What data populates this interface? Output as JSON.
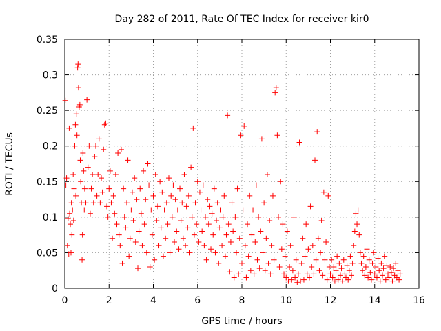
{
  "chart_data": {
    "type": "scatter",
    "title": "Day 282 of 2011, Rate Of TEC Index for receiver kir0",
    "xlabel": "GPS time / hours",
    "ylabel": "ROTI / TECUs",
    "xlim": [
      0,
      16
    ],
    "ylim": [
      0,
      0.35
    ],
    "xticks": [
      "0",
      "2",
      "4",
      "6",
      "8",
      "10",
      "12",
      "14",
      "16"
    ],
    "yticks": [
      "0",
      "0.05",
      "0.1",
      "0.15",
      "0.2",
      "0.25",
      "0.3",
      "0.35"
    ],
    "grid": true,
    "marker": "plus",
    "color": "#ff0000",
    "series": [
      {
        "points": [
          [
            0.02,
            0.264
          ],
          [
            0.05,
            0.145
          ],
          [
            0.08,
            0.155
          ],
          [
            0.12,
            0.06
          ],
          [
            0.15,
            0.098
          ],
          [
            0.18,
            0.048
          ],
          [
            0.2,
            0.225
          ],
          [
            0.22,
            0.105
          ],
          [
            0.25,
            0.09
          ],
          [
            0.28,
            0.05
          ],
          [
            0.3,
            0.12
          ],
          [
            0.32,
            0.075
          ],
          [
            0.35,
            0.11
          ],
          [
            0.38,
            0.16
          ],
          [
            0.4,
            0.095
          ],
          [
            0.42,
            0.14
          ],
          [
            0.45,
            0.2
          ],
          [
            0.48,
            0.23
          ],
          [
            0.5,
            0.13
          ],
          [
            0.52,
            0.245
          ],
          [
            0.55,
            0.215
          ],
          [
            0.58,
            0.31
          ],
          [
            0.6,
            0.315
          ],
          [
            0.62,
            0.282
          ],
          [
            0.65,
            0.255
          ],
          [
            0.68,
            0.258
          ],
          [
            0.7,
            0.18
          ],
          [
            0.72,
            0.15
          ],
          [
            0.75,
            0.12
          ],
          [
            0.78,
            0.04
          ],
          [
            0.8,
            0.075
          ],
          [
            0.82,
            0.19
          ],
          [
            0.85,
            0.165
          ],
          [
            0.88,
            0.11
          ],
          [
            0.9,
            0.14
          ],
          [
            0.95,
            0.12
          ],
          [
            1.0,
            0.265
          ],
          [
            1.05,
            0.17
          ],
          [
            1.1,
            0.2
          ],
          [
            1.15,
            0.105
          ],
          [
            1.2,
            0.14
          ],
          [
            1.25,
            0.16
          ],
          [
            1.3,
            0.12
          ],
          [
            1.35,
            0.185
          ],
          [
            1.4,
            0.2
          ],
          [
            1.45,
            0.13
          ],
          [
            1.5,
            0.16
          ],
          [
            1.55,
            0.21
          ],
          [
            1.6,
            0.12
          ],
          [
            1.65,
            0.155
          ],
          [
            1.7,
            0.135
          ],
          [
            1.75,
            0.195
          ],
          [
            1.8,
            0.23
          ],
          [
            1.85,
            0.232
          ],
          [
            1.9,
            0.115
          ],
          [
            1.95,
            0.1
          ],
          [
            2.0,
            0.14
          ],
          [
            2.05,
            0.165
          ],
          [
            2.1,
            0.12
          ],
          [
            2.15,
            0.07
          ],
          [
            2.2,
            0.13
          ],
          [
            2.25,
            0.105
          ],
          [
            2.3,
            0.16
          ],
          [
            2.35,
            0.09
          ],
          [
            2.4,
            0.19
          ],
          [
            2.45,
            0.075
          ],
          [
            2.5,
            0.06
          ],
          [
            2.55,
            0.195
          ],
          [
            2.6,
            0.035
          ],
          [
            2.65,
            0.14
          ],
          [
            2.7,
            0.1
          ],
          [
            2.75,
            0.085
          ],
          [
            2.8,
            0.12
          ],
          [
            2.85,
            0.18
          ],
          [
            2.9,
            0.045
          ],
          [
            2.95,
            0.07
          ],
          [
            3.0,
            0.11
          ],
          [
            3.05,
            0.135
          ],
          [
            3.1,
            0.095
          ],
          [
            3.15,
            0.155
          ],
          [
            3.2,
            0.065
          ],
          [
            3.25,
            0.125
          ],
          [
            3.3,
            0.028
          ],
          [
            3.35,
            0.08
          ],
          [
            3.4,
            0.14
          ],
          [
            3.45,
            0.105
          ],
          [
            3.5,
            0.06
          ],
          [
            3.55,
            0.165
          ],
          [
            3.6,
            0.09
          ],
          [
            3.65,
            0.125
          ],
          [
            3.7,
            0.05
          ],
          [
            3.75,
            0.175
          ],
          [
            3.8,
            0.145
          ],
          [
            3.85,
            0.03
          ],
          [
            3.9,
            0.11
          ],
          [
            3.95,
            0.075
          ],
          [
            4.0,
            0.13
          ],
          [
            4.05,
            0.04
          ],
          [
            4.1,
            0.16
          ],
          [
            4.15,
            0.095
          ],
          [
            4.2,
            0.115
          ],
          [
            4.25,
            0.06
          ],
          [
            4.3,
            0.15
          ],
          [
            4.35,
            0.085
          ],
          [
            4.4,
            0.135
          ],
          [
            4.45,
            0.045
          ],
          [
            4.5,
            0.11
          ],
          [
            4.55,
            0.07
          ],
          [
            4.6,
            0.12
          ],
          [
            4.65,
            0.09
          ],
          [
            4.7,
            0.155
          ],
          [
            4.75,
            0.05
          ],
          [
            4.8,
            0.13
          ],
          [
            4.85,
            0.1
          ],
          [
            4.9,
            0.145
          ],
          [
            4.95,
            0.065
          ],
          [
            5.0,
            0.125
          ],
          [
            5.05,
            0.08
          ],
          [
            5.1,
            0.11
          ],
          [
            5.15,
            0.055
          ],
          [
            5.2,
            0.14
          ],
          [
            5.25,
            0.095
          ],
          [
            5.3,
            0.12
          ],
          [
            5.35,
            0.07
          ],
          [
            5.4,
            0.16
          ],
          [
            5.45,
            0.06
          ],
          [
            5.5,
            0.115
          ],
          [
            5.55,
            0.085
          ],
          [
            5.6,
            0.13
          ],
          [
            5.65,
            0.05
          ],
          [
            5.7,
            0.17
          ],
          [
            5.75,
            0.1
          ],
          [
            5.8,
            0.225
          ],
          [
            5.85,
            0.075
          ],
          [
            5.9,
            0.12
          ],
          [
            5.95,
            0.09
          ],
          [
            6.0,
            0.15
          ],
          [
            6.05,
            0.065
          ],
          [
            6.1,
            0.135
          ],
          [
            6.15,
            0.11
          ],
          [
            6.2,
            0.08
          ],
          [
            6.25,
            0.145
          ],
          [
            6.3,
            0.06
          ],
          [
            6.35,
            0.1
          ],
          [
            6.4,
            0.04
          ],
          [
            6.45,
            0.125
          ],
          [
            6.5,
            0.09
          ],
          [
            6.55,
            0.115
          ],
          [
            6.6,
            0.055
          ],
          [
            6.65,
            0.105
          ],
          [
            6.7,
            0.075
          ],
          [
            6.75,
            0.14
          ],
          [
            6.8,
            0.05
          ],
          [
            6.85,
            0.095
          ],
          [
            6.9,
            0.12
          ],
          [
            6.95,
            0.035
          ],
          [
            7.0,
            0.085
          ],
          [
            7.05,
            0.11
          ],
          [
            7.1,
            0.06
          ],
          [
            7.15,
            0.1
          ],
          [
            7.2,
            0.13
          ],
          [
            7.25,
            0.045
          ],
          [
            7.3,
            0.075
          ],
          [
            7.35,
            0.243
          ],
          [
            7.4,
            0.09
          ],
          [
            7.45,
            0.023
          ],
          [
            7.5,
            0.065
          ],
          [
            7.55,
            0.12
          ],
          [
            7.6,
            0.08
          ],
          [
            7.65,
            0.015
          ],
          [
            7.7,
            0.1
          ],
          [
            7.75,
            0.05
          ],
          [
            7.8,
            0.14
          ],
          [
            7.85,
            0.02
          ],
          [
            7.9,
            0.07
          ],
          [
            7.95,
            0.215
          ],
          [
            8.0,
            0.035
          ],
          [
            8.05,
            0.11
          ],
          [
            8.1,
            0.228
          ],
          [
            8.15,
            0.06
          ],
          [
            8.2,
            0.015
          ],
          [
            8.25,
            0.09
          ],
          [
            8.3,
            0.045
          ],
          [
            8.35,
            0.13
          ],
          [
            8.4,
            0.025
          ],
          [
            8.45,
            0.075
          ],
          [
            8.5,
            0.11
          ],
          [
            8.55,
            0.02
          ],
          [
            8.6,
            0.065
          ],
          [
            8.65,
            0.145
          ],
          [
            8.7,
            0.04
          ],
          [
            8.75,
            0.1
          ],
          [
            8.8,
            0.028
          ],
          [
            8.85,
            0.08
          ],
          [
            8.9,
            0.21
          ],
          [
            8.95,
            0.05
          ],
          [
            9.0,
            0.12
          ],
          [
            9.05,
            0.025
          ],
          [
            9.1,
            0.07
          ],
          [
            9.15,
            0.16
          ],
          [
            9.2,
            0.035
          ],
          [
            9.25,
            0.095
          ],
          [
            9.3,
            0.02
          ],
          [
            9.35,
            0.06
          ],
          [
            9.4,
            0.13
          ],
          [
            9.45,
            0.04
          ],
          [
            9.5,
            0.275
          ],
          [
            9.55,
            0.282
          ],
          [
            9.6,
            0.215
          ],
          [
            9.65,
            0.1
          ],
          [
            9.7,
            0.03
          ],
          [
            9.75,
            0.15
          ],
          [
            9.8,
            0.055
          ],
          [
            9.85,
            0.09
          ],
          [
            9.9,
            0.02
          ],
          [
            9.95,
            0.045
          ],
          [
            10.0,
            0.015
          ],
          [
            10.05,
            0.08
          ],
          [
            10.1,
            0.01
          ],
          [
            10.15,
            0.03
          ],
          [
            10.2,
            0.06
          ],
          [
            10.25,
            0.012
          ],
          [
            10.3,
            0.025
          ],
          [
            10.35,
            0.1
          ],
          [
            10.4,
            0.015
          ],
          [
            10.45,
            0.04
          ],
          [
            10.5,
            0.008
          ],
          [
            10.55,
            0.02
          ],
          [
            10.6,
            0.205
          ],
          [
            10.65,
            0.01
          ],
          [
            10.7,
            0.035
          ],
          [
            10.75,
            0.07
          ],
          [
            10.8,
            0.012
          ],
          [
            10.85,
            0.045
          ],
          [
            10.9,
            0.09
          ],
          [
            10.95,
            0.02
          ],
          [
            11.0,
            0.055
          ],
          [
            11.05,
            0.015
          ],
          [
            11.1,
            0.115
          ],
          [
            11.15,
            0.03
          ],
          [
            11.2,
            0.06
          ],
          [
            11.25,
            0.02
          ],
          [
            11.3,
            0.18
          ],
          [
            11.35,
            0.04
          ],
          [
            11.4,
            0.22
          ],
          [
            11.45,
            0.07
          ],
          [
            11.5,
            0.025
          ],
          [
            11.55,
            0.05
          ],
          [
            11.6,
            0.095
          ],
          [
            11.65,
            0.018
          ],
          [
            11.7,
            0.135
          ],
          [
            11.75,
            0.04
          ],
          [
            11.8,
            0.065
          ],
          [
            11.85,
            0.012
          ],
          [
            11.9,
            0.13
          ],
          [
            11.95,
            0.03
          ],
          [
            12.0,
            0.02
          ],
          [
            12.05,
            0.04
          ],
          [
            12.1,
            0.015
          ],
          [
            12.15,
            0.03
          ],
          [
            12.2,
            0.01
          ],
          [
            12.25,
            0.025
          ],
          [
            12.3,
            0.045
          ],
          [
            12.35,
            0.012
          ],
          [
            12.4,
            0.035
          ],
          [
            12.45,
            0.018
          ],
          [
            12.5,
            0.028
          ],
          [
            12.55,
            0.01
          ],
          [
            12.6,
            0.04
          ],
          [
            12.65,
            0.02
          ],
          [
            12.7,
            0.015
          ],
          [
            12.75,
            0.032
          ],
          [
            12.8,
            0.012
          ],
          [
            12.85,
            0.025
          ],
          [
            12.9,
            0.045
          ],
          [
            12.95,
            0.018
          ],
          [
            13.0,
            0.035
          ],
          [
            13.05,
            0.06
          ],
          [
            13.1,
            0.08
          ],
          [
            13.15,
            0.105
          ],
          [
            13.2,
            0.09
          ],
          [
            13.25,
            0.11
          ],
          [
            13.3,
            0.075
          ],
          [
            13.35,
            0.05
          ],
          [
            13.4,
            0.035
          ],
          [
            13.45,
            0.025
          ],
          [
            13.5,
            0.045
          ],
          [
            13.55,
            0.018
          ],
          [
            13.6,
            0.03
          ],
          [
            13.65,
            0.055
          ],
          [
            13.7,
            0.015
          ],
          [
            13.75,
            0.04
          ],
          [
            13.8,
            0.022
          ],
          [
            13.85,
            0.012
          ],
          [
            13.9,
            0.035
          ],
          [
            13.95,
            0.05
          ],
          [
            14.0,
            0.02
          ],
          [
            14.05,
            0.03
          ],
          [
            14.1,
            0.015
          ],
          [
            14.15,
            0.042
          ],
          [
            14.2,
            0.025
          ],
          [
            14.25,
            0.01
          ],
          [
            14.3,
            0.035
          ],
          [
            14.35,
            0.018
          ],
          [
            14.4,
            0.028
          ],
          [
            14.45,
            0.045
          ],
          [
            14.5,
            0.012
          ],
          [
            14.55,
            0.032
          ],
          [
            14.6,
            0.02
          ],
          [
            14.65,
            0.015
          ],
          [
            14.7,
            0.03
          ],
          [
            14.75,
            0.022
          ],
          [
            14.8,
            0.01
          ],
          [
            14.85,
            0.028
          ],
          [
            14.9,
            0.018
          ],
          [
            14.95,
            0.035
          ],
          [
            15.0,
            0.015
          ],
          [
            15.05,
            0.025
          ],
          [
            15.1,
            0.012
          ],
          [
            15.15,
            0.02
          ]
        ]
      }
    ]
  }
}
